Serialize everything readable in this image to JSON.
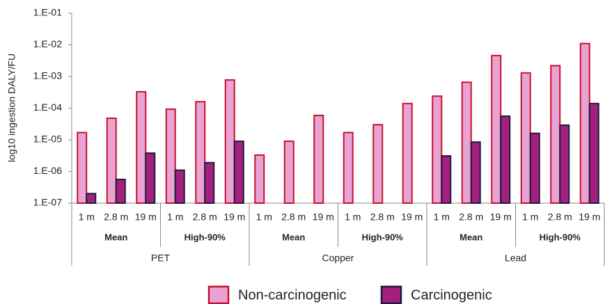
{
  "chart_data": {
    "type": "bar",
    "y_label": "log10 ingestion DALY/FU",
    "log_scale": true,
    "ylim": [
      1e-07,
      0.1
    ],
    "yticks": [
      {
        "value": 1e-07,
        "label": "1.E-07"
      },
      {
        "value": 1e-06,
        "label": "1.E-06"
      },
      {
        "value": 1e-05,
        "label": "1.E-05"
      },
      {
        "value": 0.0001,
        "label": "1.E-04"
      },
      {
        "value": 0.001,
        "label": "1.E-03"
      },
      {
        "value": 0.01,
        "label": "1.E-02"
      },
      {
        "value": 0.1,
        "label": "1.E-01"
      }
    ],
    "categories": [
      "1 m",
      "2.8 m",
      "19 m",
      "1 m",
      "2.8 m",
      "19 m",
      "1 m",
      "2.8 m",
      "19 m",
      "1 m",
      "2.8 m",
      "19 m",
      "1 m",
      "2.8 m",
      "19 m",
      "1 m",
      "2.8 m",
      "19 m"
    ],
    "category_groups": [
      {
        "label": "PET",
        "subgroups": [
          "Mean",
          "High-90%"
        ]
      },
      {
        "label": "Copper",
        "subgroups": [
          "Mean",
          "High-90%"
        ]
      },
      {
        "label": "Lead",
        "subgroups": [
          "Mean",
          "High-90%"
        ]
      }
    ],
    "series": [
      {
        "name": "Non-carcinogenic",
        "color": "#e8a3d3",
        "edge_color": "#c8102e",
        "values": [
          1.7e-05,
          4.8e-05,
          0.00033,
          9.3e-05,
          0.00016,
          0.00078,
          3.3e-06,
          9e-06,
          5.9e-05,
          1.7e-05,
          3e-05,
          0.00014,
          0.00024,
          0.00066,
          0.0046,
          0.0013,
          0.0022,
          0.011
        ]
      },
      {
        "name": "Carcinogenic",
        "color": "#a3207e",
        "edge_color": "#1c1c3c",
        "values": [
          2e-07,
          5.6e-07,
          3.8e-06,
          1.1e-06,
          1.9e-06,
          9e-06,
          null,
          null,
          null,
          null,
          null,
          null,
          3.1e-06,
          8.5e-06,
          5.6e-05,
          1.6e-05,
          2.9e-05,
          0.00014
        ]
      }
    ]
  }
}
